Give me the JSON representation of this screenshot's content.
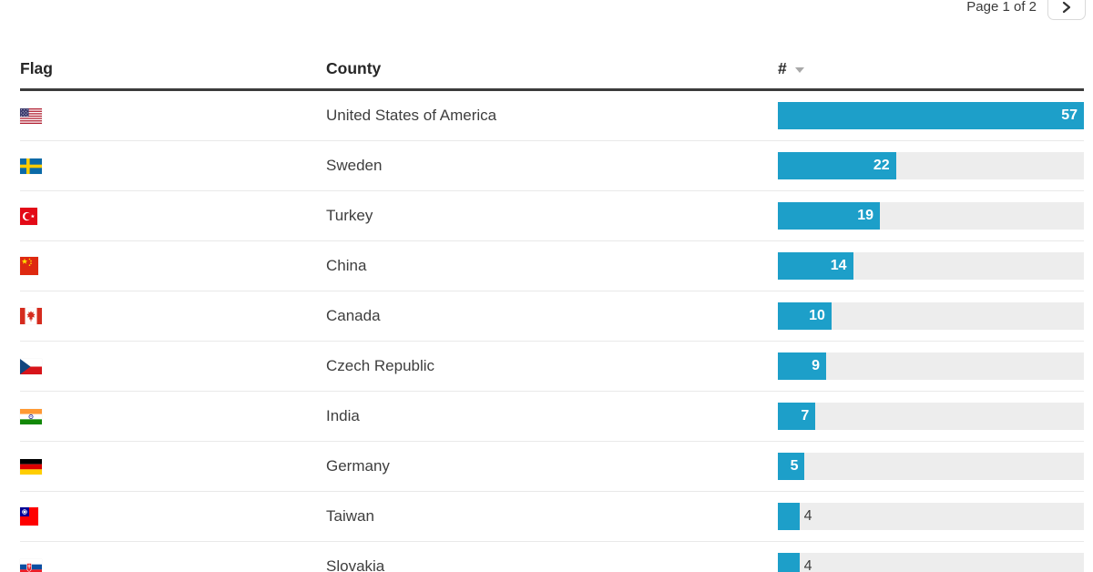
{
  "pagination": {
    "label": "Page 1 of 2",
    "next_icon": "chevron-right-icon"
  },
  "table": {
    "columns": [
      {
        "label": "Flag"
      },
      {
        "label": "County"
      },
      {
        "label": "#",
        "sort": "desc"
      }
    ],
    "max_value": 57,
    "rows": [
      {
        "flag": "us",
        "country": "United States of America",
        "value": 57
      },
      {
        "flag": "se",
        "country": "Sweden",
        "value": 22
      },
      {
        "flag": "tr",
        "country": "Turkey",
        "value": 19
      },
      {
        "flag": "cn",
        "country": "China",
        "value": 14
      },
      {
        "flag": "ca",
        "country": "Canada",
        "value": 10
      },
      {
        "flag": "cz",
        "country": "Czech Republic",
        "value": 9
      },
      {
        "flag": "in",
        "country": "India",
        "value": 7
      },
      {
        "flag": "de",
        "country": "Germany",
        "value": 5
      },
      {
        "flag": "tw",
        "country": "Taiwan",
        "value": 4
      },
      {
        "flag": "sk",
        "country": "Slovakia",
        "value": 4
      }
    ]
  },
  "chart_data": {
    "type": "bar",
    "categories": [
      "United States of America",
      "Sweden",
      "Turkey",
      "China",
      "Canada",
      "Czech Republic",
      "India",
      "Germany",
      "Taiwan",
      "Slovakia"
    ],
    "values": [
      57,
      22,
      19,
      14,
      10,
      9,
      7,
      5,
      4,
      4
    ],
    "title": "",
    "xlabel": "",
    "ylabel": "#",
    "xlim": [
      0,
      57
    ],
    "orientation": "horizontal"
  },
  "colors": {
    "bar": "#1d9fc9",
    "track": "#ededed",
    "header_line": "#3b3b3b"
  }
}
